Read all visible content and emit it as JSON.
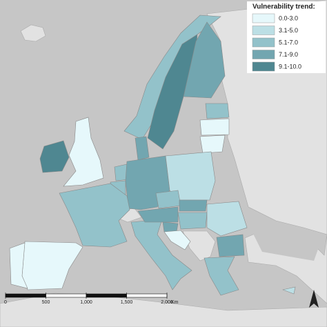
{
  "legend": {
    "title": "Vulnerability trend:",
    "items": [
      {
        "label": "0.0-3.0",
        "color": "#e6f8fb"
      },
      {
        "label": "3.1-5.0",
        "color": "#bcdfe5"
      },
      {
        "label": "5.1-7.0",
        "color": "#93c2ca"
      },
      {
        "label": "7.1-9.0",
        "color": "#72a6b0"
      },
      {
        "label": "9.1-10.0",
        "color": "#4f8791"
      }
    ]
  },
  "scale_bar": {
    "ticks": [
      0,
      500,
      {
        "value": 1000,
        "label": "1,000"
      },
      {
        "value": 1500,
        "label": "1,500"
      },
      {
        "value": 2000,
        "label": "2,000"
      }
    ],
    "unit": "Km"
  }
}
